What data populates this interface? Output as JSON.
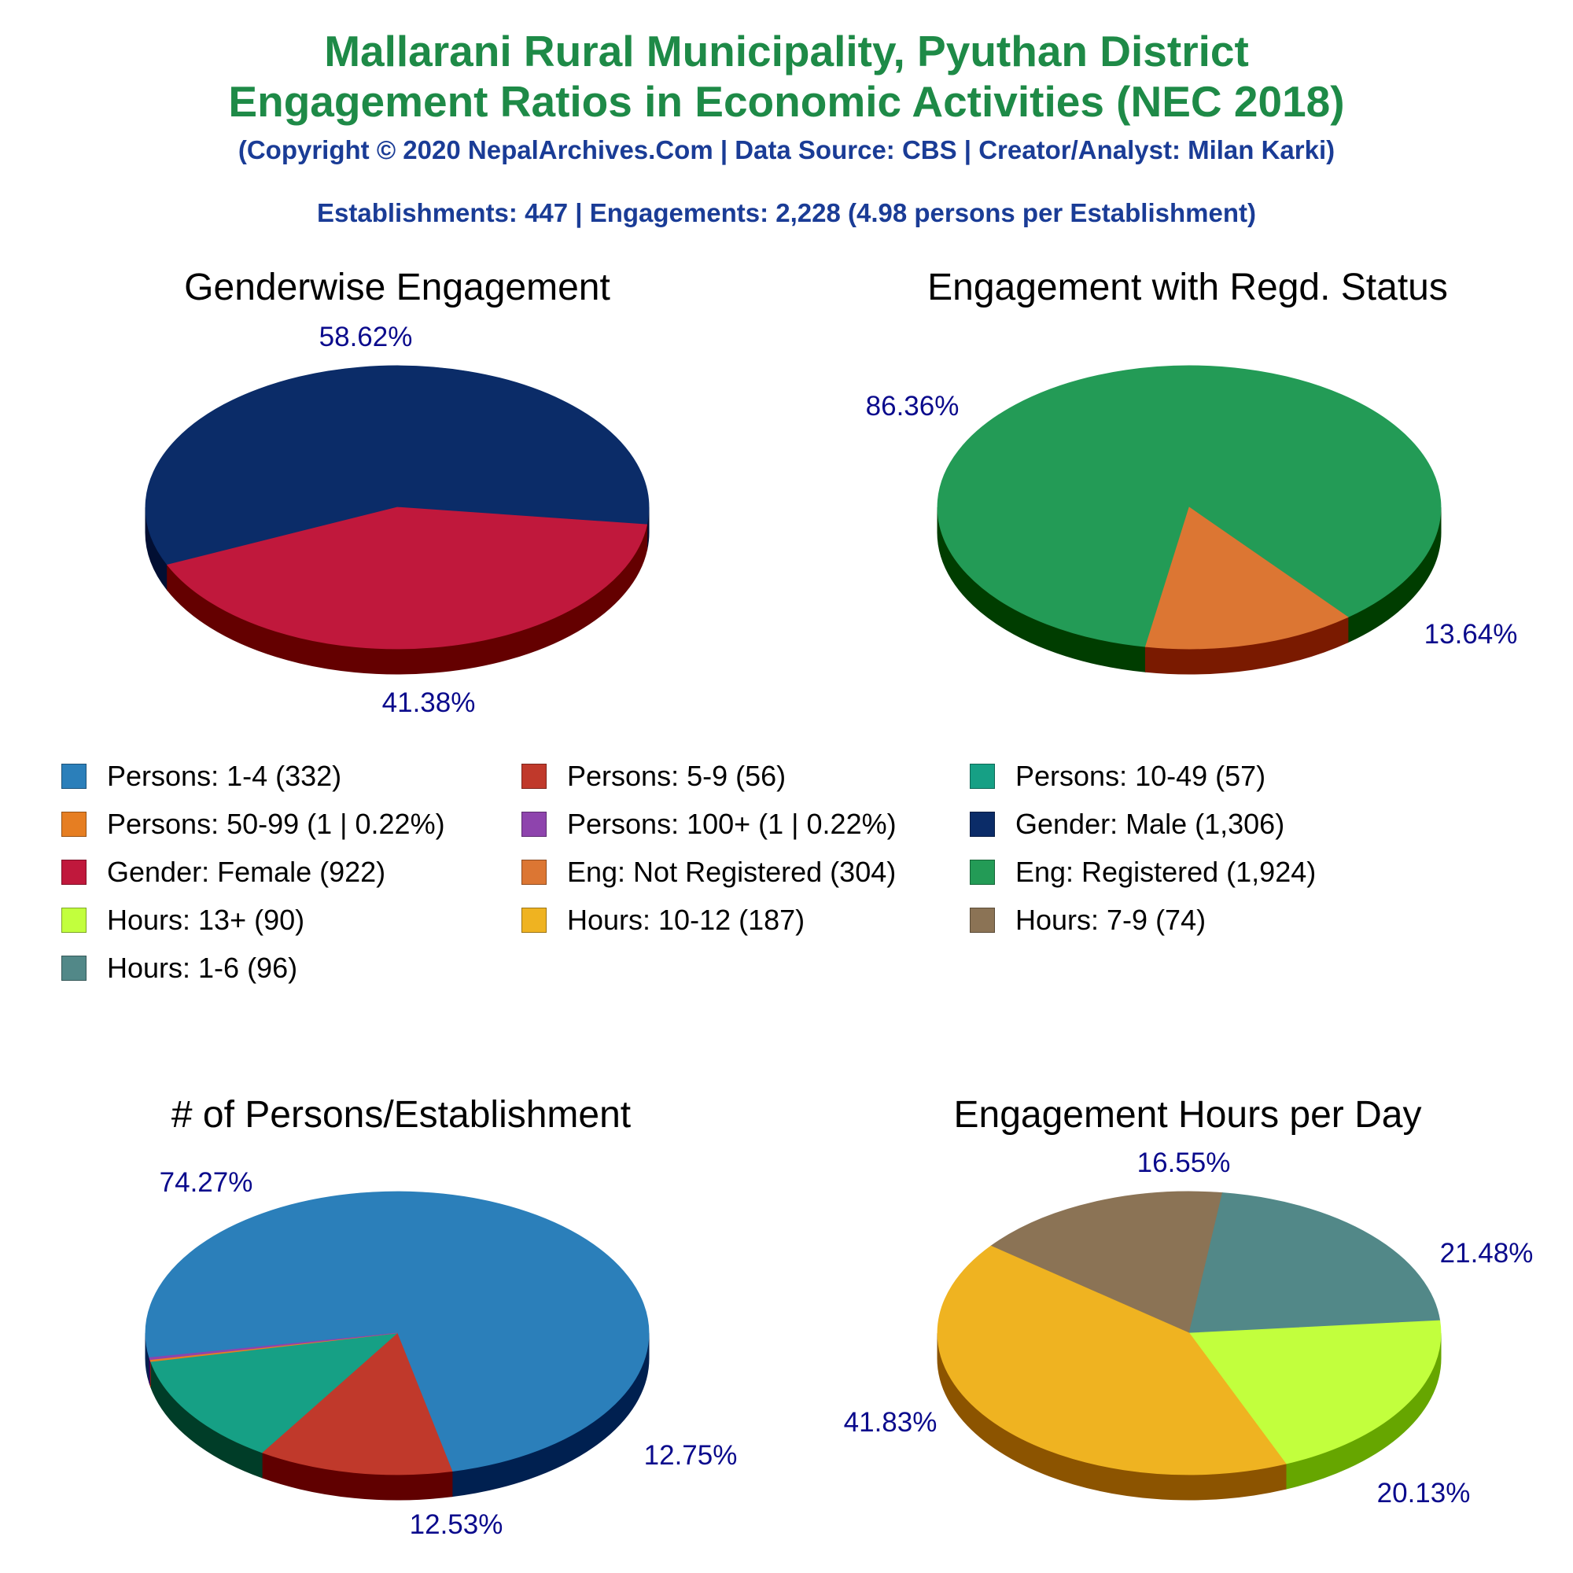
{
  "header": {
    "title_line1": "Mallarani Rural Municipality, Pyuthan District",
    "title_line2": "Engagement Ratios in Economic Activities (NEC 2018)",
    "copyright": "(Copyright © 2020 NepalArchives.Com | Data Source: CBS | Creator/Analyst: Milan Karki)",
    "summary": "Establishments: 447 | Engagements: 2,228 (4.98 persons per Establishment)"
  },
  "legend": [
    {
      "label": "Persons: 1-4 (332)",
      "color": "#2b7fba"
    },
    {
      "label": "Persons: 5-9 (56)",
      "color": "#c0392b"
    },
    {
      "label": "Persons: 10-49 (57)",
      "color": "#16a085"
    },
    {
      "label": "Persons: 50-99 (1 | 0.22%)",
      "color": "#e67e22"
    },
    {
      "label": "Persons: 100+ (1 | 0.22%)",
      "color": "#8e44ad"
    },
    {
      "label": "Gender: Male (1,306)",
      "color": "#0b2c68"
    },
    {
      "label": "Gender: Female (922)",
      "color": "#c0183c"
    },
    {
      "label": "Eng: Not Registered (304)",
      "color": "#dc7633"
    },
    {
      "label": "Eng: Registered (1,924)",
      "color": "#239b56"
    },
    {
      "label": "Hours: 13+ (90)",
      "color": "#c2ff3d"
    },
    {
      "label": "Hours: 10-12 (187)",
      "color": "#efb321"
    },
    {
      "label": "Hours: 7-9 (74)",
      "color": "#8b7355"
    },
    {
      "label": "Hours: 1-6 (96)",
      "color": "#528888"
    }
  ],
  "chart_data": [
    {
      "type": "pie",
      "title": "Genderwise Engagement",
      "series": [
        {
          "name": "Gender: Male",
          "value": 1306,
          "label": "58.62%",
          "color": "#0b2c68",
          "side_color": "#020f33"
        },
        {
          "name": "Gender: Female",
          "value": 922,
          "label": "41.38%",
          "color": "#c0183c",
          "side_color": "#640000"
        }
      ]
    },
    {
      "type": "pie",
      "title": "Engagement with Regd. Status",
      "series": [
        {
          "name": "Eng: Registered",
          "value": 1924,
          "label": "86.36%",
          "color": "#239b56",
          "side_color": "#003d00"
        },
        {
          "name": "Eng: Not Registered",
          "value": 304,
          "label": "13.64%",
          "color": "#dc7633",
          "side_color": "#7a1a00"
        }
      ]
    },
    {
      "type": "pie",
      "title": "# of Persons/Establishment",
      "series": [
        {
          "name": "Persons: 1-4",
          "value": 332,
          "label": "74.27%",
          "color": "#2b7fba",
          "side_color": "#002050"
        },
        {
          "name": "Persons: 5-9",
          "value": 56,
          "label": "12.53%",
          "color": "#c0392b",
          "side_color": "#600000"
        },
        {
          "name": "Persons: 10-49",
          "value": 57,
          "label": "12.75%",
          "color": "#16a085",
          "side_color": "#003d28"
        },
        {
          "name": "Persons: 50-99",
          "value": 1,
          "label": "",
          "color": "#e67e22",
          "side_color": "#7a2a00"
        },
        {
          "name": "Persons: 100+",
          "value": 1,
          "label": "",
          "color": "#8e44ad",
          "side_color": "#3a005a"
        }
      ]
    },
    {
      "type": "pie",
      "title": "Engagement Hours per Day",
      "series": [
        {
          "name": "Hours: 7-9",
          "value": 74,
          "label": "16.55%",
          "color": "#8b7355",
          "side_color": "#3d2a10"
        },
        {
          "name": "Hours: 1-6",
          "value": 96,
          "label": "21.48%",
          "color": "#528888",
          "side_color": "#0f3535"
        },
        {
          "name": "Hours: 13+",
          "value": 90,
          "label": "20.13%",
          "color": "#c2ff3d",
          "side_color": "#66a600"
        },
        {
          "name": "Hours: 10-12",
          "value": 187,
          "label": "41.83%",
          "color": "#efb321",
          "side_color": "#8c5400"
        }
      ]
    }
  ]
}
